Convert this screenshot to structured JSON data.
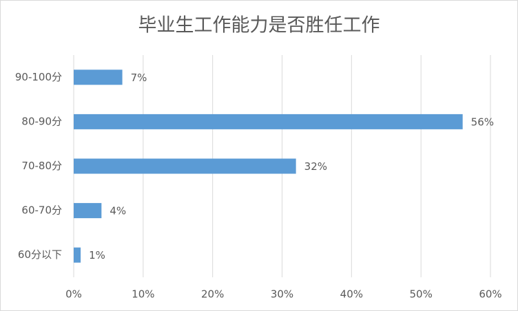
{
  "chart_data": {
    "type": "barh",
    "title": "毕业生工作能力是否胜任工作",
    "categories": [
      "90-100分",
      "80-90分",
      "70-80分",
      "60-70分",
      "60分以下"
    ],
    "values": [
      7,
      56,
      32,
      4,
      1
    ],
    "value_labels": [
      "7%",
      "56%",
      "32%",
      "4%",
      "1%"
    ],
    "color": "#5b9bd5",
    "xlim": [
      0,
      60
    ],
    "xticks": [
      {
        "value": 0,
        "label": "0%"
      },
      {
        "value": 10,
        "label": "10%"
      },
      {
        "value": 20,
        "label": "20%"
      },
      {
        "value": 30,
        "label": "30%"
      },
      {
        "value": 40,
        "label": "40%"
      },
      {
        "value": 50,
        "label": "50%"
      },
      {
        "value": 60,
        "label": "60%"
      }
    ],
    "grid": true
  }
}
